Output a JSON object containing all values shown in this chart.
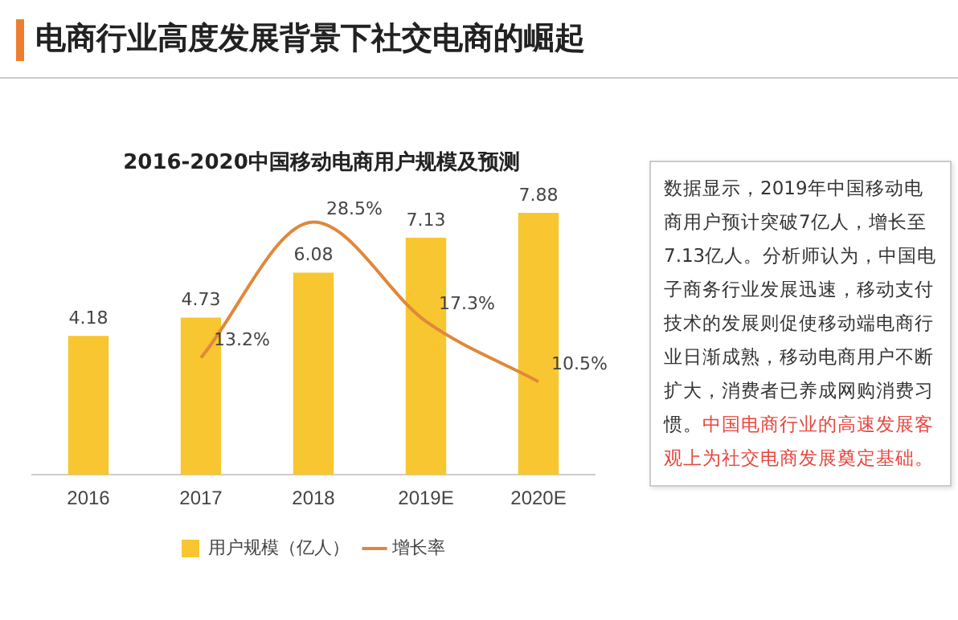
{
  "chart_data": {
    "type": "bar",
    "title": "电商行业高度发展背景下社交电商的崛起",
    "subtitle": "2016-2020中国移动电商用户规模及预测",
    "categories": [
      "2016",
      "2017",
      "2018",
      "2019E",
      "2020E"
    ],
    "series": [
      {
        "name": "用户规模（亿人）",
        "color": "#f8c630",
        "values": [
          4.18,
          4.73,
          6.08,
          7.13,
          7.88
        ],
        "value_labels": [
          "4.18",
          "4.73",
          "6.08",
          "7.13",
          "7.88"
        ]
      },
      {
        "name": "增长率",
        "type": "line",
        "axis": "y2",
        "color": "#e0883a",
        "values": [
          null,
          13.2,
          28.5,
          17.3,
          10.5
        ],
        "value_labels": [
          null,
          "13.2%",
          "28.5%",
          "17.3%",
          "10.5%"
        ]
      }
    ],
    "annotations": [
      "数据显示，2019年中国移动电商用户预计突破7亿人，增长至7.13亿人。分析师认为，中国电子商务行业发展迅速，移动支付技术的发展则促使移动端电商行业日渐成熟，移动电商用户不断扩大，消费者已养成网购消费习惯。",
      "中国电商行业的高速发展客观上为社交电商发展奠定基础。"
    ],
    "legend": "bottom",
    "grid": false,
    "tick_labels": "x",
    "marker": "none"
  }
}
